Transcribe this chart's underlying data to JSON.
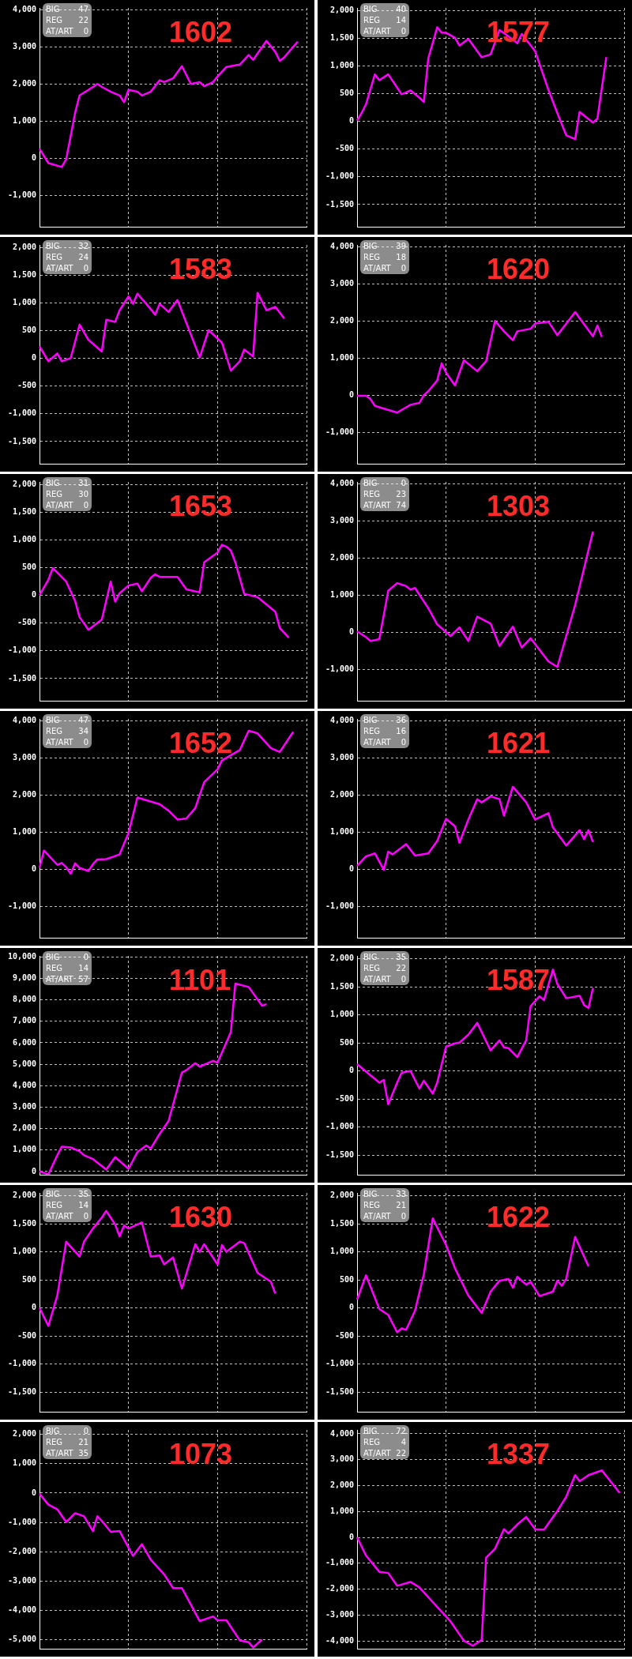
{
  "chart_data": [
    {
      "type": "line",
      "title": "1602",
      "annotations": [
        "BIG",
        "47",
        "REG",
        "22",
        "AT/ART",
        "0"
      ],
      "color": "#ff00ff",
      "grid": true,
      "tick_labels": "y",
      "marker": "none",
      "ylim": [
        -1850,
        4050
      ],
      "yticks": [
        {
          "value": 4000,
          "label": "4,000"
        },
        {
          "value": 3000,
          "label": "3,000"
        },
        {
          "value": 2000,
          "label": "2,000"
        },
        {
          "value": 1000,
          "label": "1,000"
        },
        0,
        {
          "value": -1000,
          "label": "-1,000"
        }
      ],
      "categories": [
        null,
        null,
        null,
        null,
        null,
        null,
        null,
        null,
        null,
        null,
        null,
        null,
        null,
        null,
        null,
        null,
        null,
        null,
        null,
        null,
        null,
        null,
        null,
        null,
        null,
        null,
        null,
        null,
        null,
        null,
        null,
        null,
        null,
        null,
        null,
        null,
        null,
        null,
        null,
        null,
        null,
        null,
        null,
        null,
        null,
        null,
        null,
        null,
        null,
        null,
        null,
        null,
        null,
        null,
        null,
        null,
        null,
        null,
        null,
        null,
        null
      ],
      "values": [
        250,
        null,
        -135,
        null,
        null,
        -240,
        -30,
        590,
        1220,
        1690,
        null,
        1840,
        null,
        2000,
        1920,
        null,
        1790,
        null,
        1690,
        1510,
        1840,
        null,
        1790,
        1690,
        null,
        1790,
        null,
        2100,
        2050,
        null,
        2150,
        null,
        2480,
        null,
        2000,
        null,
        2050,
        1940,
        null,
        2050,
        2200,
        null,
        2460,
        null,
        null,
        2520,
        null,
        2780,
        2650,
        null,
        null,
        3160,
        null,
        2860,
        2620,
        2720,
        null,
        null,
        3140,
        null,
        null
      ]
    },
    {
      "type": "line",
      "title": "1577",
      "annotations": [
        "BIG",
        "40",
        "REG",
        "14",
        "AT/ART",
        "0"
      ],
      "color": "#ff00ff",
      "grid": true,
      "tick_labels": "y",
      "marker": "none",
      "ylim": [
        -1900,
        2050
      ],
      "yticks": [
        {
          "value": 2000,
          "label": "2,000"
        },
        {
          "value": 1500,
          "label": "1,500"
        },
        {
          "value": 1000,
          "label": "1,000"
        },
        500,
        0,
        -500,
        {
          "value": -1000,
          "label": "-1,000"
        },
        {
          "value": -1500,
          "label": "-1,500"
        }
      ],
      "categories": [
        null,
        null,
        null,
        null,
        null,
        null,
        null,
        null,
        null,
        null,
        null,
        null,
        null,
        null,
        null,
        null,
        null,
        null,
        null,
        null,
        null,
        null,
        null,
        null,
        null,
        null,
        null,
        null,
        null,
        null,
        null,
        null,
        null,
        null,
        null,
        null,
        null,
        null,
        null,
        null,
        null,
        null,
        null,
        null,
        null,
        null,
        null,
        null,
        null,
        null,
        null,
        null,
        null,
        null,
        null,
        null,
        null,
        null,
        null,
        null,
        null
      ],
      "values": [
        15,
        150,
        310,
        null,
        850,
        745,
        null,
        850,
        null,
        null,
        490,
        null,
        560,
        null,
        430,
        350,
        1140,
        null,
        1700,
        1600,
        1600,
        null,
        1510,
        1370,
        null,
        1490,
        null,
        null,
        1160,
        null,
        1210,
        null,
        1650,
        null,
        null,
        1480,
        1410,
        1580,
        null,
        null,
        1270,
        null,
        null,
        570,
        null,
        150,
        null,
        -250,
        null,
        -320,
        170,
        null,
        null,
        -20,
        50,
        null,
        1160,
        null,
        null,
        null,
        null
      ]
    },
    {
      "type": "line",
      "title": "1583",
      "annotations": [
        "BIG",
        "32",
        "REG",
        "24",
        "AT/ART",
        "0"
      ],
      "color": "#ff00ff",
      "grid": true,
      "tick_labels": "y",
      "marker": "none",
      "ylim": [
        -1900,
        2050
      ],
      "yticks": [
        {
          "value": 2000,
          "label": "2,000"
        },
        {
          "value": 1500,
          "label": "1,500"
        },
        {
          "value": 1000,
          "label": "1,000"
        },
        500,
        0,
        -500,
        {
          "value": -1000,
          "label": "-1,000"
        },
        {
          "value": -1500,
          "label": "-1,500"
        }
      ],
      "categories": [
        null,
        null,
        null,
        null,
        null,
        null,
        null,
        null,
        null,
        null,
        null,
        null,
        null,
        null,
        null,
        null,
        null,
        null,
        null,
        null,
        null,
        null,
        null,
        null,
        null,
        null,
        null,
        null,
        null,
        null,
        null,
        null,
        null,
        null,
        null,
        null,
        null,
        null,
        null,
        null,
        null,
        null,
        null,
        null,
        null,
        null,
        null,
        null,
        null,
        null,
        null,
        null,
        null,
        null,
        null,
        null,
        null,
        null,
        null,
        null,
        null
      ],
      "values": [
        215,
        null,
        -50,
        null,
        90,
        -50,
        null,
        5,
        300,
        610,
        null,
        335,
        null,
        null,
        125,
        700,
        null,
        660,
        870,
        null,
        1120,
        985,
        1170,
        null,
        null,
        890,
        790,
        985,
        null,
        840,
        null,
        1055,
        null,
        null,
        null,
        null,
        20,
        null,
        510,
        null,
        null,
        285,
        null,
        -220,
        null,
        -50,
        160,
        null,
        35,
        1185,
        null,
        870,
        null,
        930,
        null,
        720,
        null,
        null,
        null,
        null,
        null
      ]
    },
    {
      "type": "line",
      "title": "1620",
      "annotations": [
        "BIG",
        "39",
        "REG",
        "18",
        "AT/ART",
        "0"
      ],
      "color": "#ff00ff",
      "grid": true,
      "tick_labels": "y",
      "marker": "none",
      "ylim": [
        -1850,
        4050
      ],
      "yticks": [
        {
          "value": 4000,
          "label": "4,000"
        },
        {
          "value": 3000,
          "label": "3,000"
        },
        {
          "value": 2000,
          "label": "2,000"
        },
        {
          "value": 1000,
          "label": "1,000"
        },
        0,
        {
          "value": -1000,
          "label": "-1,000"
        }
      ],
      "categories": [
        null,
        null,
        null,
        null,
        null,
        null,
        null,
        null,
        null,
        null,
        null,
        null,
        null,
        null,
        null,
        null,
        null,
        null,
        null,
        null,
        null,
        null,
        null,
        null,
        null,
        null,
        null,
        null,
        null,
        null,
        null,
        null,
        null,
        null,
        null,
        null,
        null,
        null,
        null,
        null,
        null,
        null,
        null,
        null,
        null,
        null,
        null,
        null,
        null,
        null,
        null,
        null,
        null,
        null,
        null,
        null,
        null,
        null,
        null,
        null,
        null
      ],
      "values": [
        -20,
        null,
        -20,
        -105,
        -290,
        null,
        -365,
        null,
        null,
        -470,
        null,
        null,
        -260,
        null,
        -210,
        0,
        105,
        null,
        395,
        855,
        605,
        null,
        260,
        null,
        940,
        null,
        null,
        645,
        null,
        915,
        null,
        2000,
        null,
        1720,
        null,
        1480,
        1720,
        null,
        null,
        1790,
        1930,
        null,
        null,
        1980,
        null,
        1615,
        null,
        null,
        null,
        2240,
        null,
        null,
        null,
        1585,
        1875,
        1565,
        null,
        null,
        null,
        null,
        null
      ]
    },
    {
      "type": "line",
      "title": "1653",
      "annotations": [
        "BIG",
        "31",
        "REG",
        "30",
        "AT/ART",
        "0"
      ],
      "color": "#ff00ff",
      "grid": true,
      "tick_labels": "y",
      "marker": "none",
      "ylim": [
        -1900,
        2050
      ],
      "yticks": [
        {
          "value": 2000,
          "label": "2,000"
        },
        {
          "value": 1500,
          "label": "1,500"
        },
        {
          "value": 1000,
          "label": "1,000"
        },
        500,
        0,
        -500,
        {
          "value": -1000,
          "label": "-1,000"
        },
        {
          "value": -1500,
          "label": "-1,500"
        }
      ],
      "categories": [
        null,
        null,
        null,
        null,
        null,
        null,
        null,
        null,
        null,
        null,
        null,
        null,
        null,
        null,
        null,
        null,
        null,
        null,
        null,
        null,
        null,
        null,
        null,
        null,
        null,
        null,
        null,
        null,
        null,
        null,
        null,
        null,
        null,
        null,
        null,
        null,
        null,
        null,
        null,
        null,
        null,
        null,
        null,
        null,
        null,
        null,
        null,
        null,
        null,
        null,
        null,
        null,
        null,
        null,
        null,
        null,
        null,
        null,
        null,
        null,
        null
      ],
      "values": [
        5,
        null,
        285,
        495,
        null,
        null,
        250,
        null,
        -100,
        -390,
        null,
        -620,
        null,
        null,
        -435,
        null,
        250,
        -110,
        40,
        null,
        180,
        null,
        215,
        75,
        null,
        320,
        380,
        335,
        null,
        335,
        null,
        335,
        null,
        110,
        null,
        null,
        55,
        600,
        null,
        null,
        775,
        915,
        880,
        810,
        600,
        null,
        30,
        null,
        null,
        -30,
        null,
        null,
        null,
        -295,
        -590,
        null,
        -760,
        null,
        null,
        null,
        null
      ]
    },
    {
      "type": "line",
      "title": "1303",
      "annotations": [
        "BIG",
        "0",
        "REG",
        "23",
        "AT/ART",
        "74"
      ],
      "color": "#ff00ff",
      "grid": true,
      "tick_labels": "y",
      "marker": "none",
      "ylim": [
        -1850,
        4050
      ],
      "yticks": [
        {
          "value": 4000,
          "label": "4,000"
        },
        {
          "value": 3000,
          "label": "3,000"
        },
        {
          "value": 2000,
          "label": "2,000"
        },
        {
          "value": 1000,
          "label": "1,000"
        },
        0,
        {
          "value": -1000,
          "label": "-1,000"
        }
      ],
      "categories": [
        null,
        null,
        null,
        null,
        null,
        null,
        null,
        null,
        null,
        null,
        null,
        null,
        null,
        null,
        null,
        null,
        null,
        null,
        null,
        null,
        null,
        null,
        null,
        null,
        null,
        null,
        null,
        null,
        null,
        null,
        null,
        null,
        null,
        null,
        null,
        null,
        null,
        null,
        null,
        null,
        null,
        null,
        null,
        null,
        null,
        null,
        null,
        null,
        null,
        null,
        null,
        null,
        null,
        null,
        null,
        null,
        null,
        null,
        null,
        null,
        null
      ],
      "values": [
        20,
        null,
        -135,
        -240,
        null,
        -190,
        null,
        1115,
        null,
        1320,
        null,
        1240,
        1145,
        1190,
        null,
        null,
        645,
        null,
        210,
        null,
        null,
        -105,
        null,
        125,
        null,
        -240,
        null,
        415,
        null,
        null,
        230,
        null,
        -375,
        null,
        null,
        145,
        null,
        -415,
        null,
        -165,
        null,
        null,
        null,
        -790,
        null,
        -940,
        null,
        null,
        null,
        730,
        null,
        null,
        null,
        2710,
        null,
        null,
        null,
        null,
        null,
        null,
        null
      ]
    },
    {
      "type": "line",
      "title": "1652",
      "annotations": [
        "BIG",
        "47",
        "REG",
        "34",
        "AT/ART",
        "0"
      ],
      "color": "#ff00ff",
      "grid": true,
      "tick_labels": "y",
      "marker": "none",
      "ylim": [
        -1850,
        4050
      ],
      "yticks": [
        {
          "value": 4000,
          "label": "4,000"
        },
        {
          "value": 3000,
          "label": "3,000"
        },
        {
          "value": 2000,
          "label": "2,000"
        },
        {
          "value": 1000,
          "label": "1,000"
        },
        0,
        {
          "value": -1000,
          "label": "-1,000"
        }
      ],
      "categories": [
        null,
        null,
        null,
        null,
        null,
        null,
        null,
        null,
        null,
        null,
        null,
        null,
        null,
        null,
        null,
        null,
        null,
        null,
        null,
        null,
        null,
        null,
        null,
        null,
        null,
        null,
        null,
        null,
        null,
        null,
        null,
        null,
        null,
        null,
        null,
        null,
        null,
        null,
        null,
        null,
        null,
        null,
        null,
        null,
        null,
        null,
        null,
        null,
        null,
        null,
        null,
        null,
        null,
        null,
        null,
        null,
        null,
        null,
        null,
        null,
        null
      ],
      "values": [
        30,
        500,
        null,
        null,
        115,
        165,
        50,
        -125,
        155,
        30,
        null,
        -50,
        135,
        260,
        null,
        270,
        null,
        null,
        395,
        null,
        970,
        null,
        1930,
        null,
        1855,
        null,
        null,
        1750,
        null,
        1575,
        null,
        1335,
        null,
        1365,
        null,
        1645,
        null,
        2345,
        null,
        null,
        2690,
        2930,
        null,
        null,
        null,
        3210,
        null,
        3730,
        null,
        3660,
        null,
        null,
        3260,
        null,
        3160,
        null,
        null,
        3700,
        null,
        null,
        null
      ]
    },
    {
      "type": "line",
      "title": "1621",
      "annotations": [
        "BIG",
        "36",
        "REG",
        "16",
        "AT/ART",
        "0"
      ],
      "color": "#ff00ff",
      "grid": true,
      "tick_labels": "y",
      "marker": "none",
      "ylim": [
        -1850,
        4050
      ],
      "yticks": [
        {
          "value": 4000,
          "label": "4,000"
        },
        {
          "value": 3000,
          "label": "3,000"
        },
        {
          "value": 2000,
          "label": "2,000"
        },
        {
          "value": 1000,
          "label": "1,000"
        },
        0,
        {
          "value": -1000,
          "label": "-1,000"
        }
      ],
      "categories": [
        null,
        null,
        null,
        null,
        null,
        null,
        null,
        null,
        null,
        null,
        null,
        null,
        null,
        null,
        null,
        null,
        null,
        null,
        null,
        null,
        null,
        null,
        null,
        null,
        null,
        null,
        null,
        null,
        null,
        null,
        null,
        null,
        null,
        null,
        null,
        null,
        null,
        null,
        null,
        null,
        null,
        null,
        null,
        null,
        null,
        null,
        null,
        null,
        null,
        null,
        null,
        null,
        null,
        null,
        null,
        null,
        null,
        null,
        null,
        null,
        null
      ],
      "values": [
        85,
        null,
        345,
        null,
        425,
        null,
        -20,
        470,
        395,
        null,
        null,
        675,
        null,
        365,
        null,
        null,
        425,
        null,
        760,
        null,
        1355,
        null,
        1155,
        710,
        null,
        1335,
        null,
        1885,
        1800,
        null,
        1960,
        null,
        1885,
        1440,
        null,
        2220,
        null,
        null,
        1800,
        null,
        1335,
        null,
        null,
        1510,
        1125,
        null,
        null,
        635,
        null,
        null,
        1050,
        810,
        1050,
        730,
        null,
        null,
        null,
        null,
        null,
        null,
        null
      ]
    },
    {
      "type": "line",
      "title": "1101",
      "annotations": [
        "BIG",
        "0",
        "REG",
        "14",
        "AT/ART",
        "57"
      ],
      "color": "#ff00ff",
      "grid": true,
      "tick_labels": "y",
      "marker": "none",
      "ylim": [
        -150,
        10050
      ],
      "yticks": [
        {
          "value": 10000,
          "label": "10,000"
        },
        {
          "value": 9000,
          "label": "9,000"
        },
        {
          "value": 8000,
          "label": "8,000"
        },
        {
          "value": 7000,
          "label": "7,000"
        },
        {
          "value": 6000,
          "label": "6,000"
        },
        {
          "value": 5000,
          "label": "5,000"
        },
        {
          "value": 4000,
          "label": "4,000"
        },
        {
          "value": 3000,
          "label": "3,000"
        },
        {
          "value": 2000,
          "label": "2,000"
        },
        {
          "value": 1000,
          "label": "1,000"
        },
        0
      ],
      "categories": [
        null,
        null,
        null,
        null,
        null,
        null,
        null,
        null,
        null,
        null,
        null,
        null,
        null,
        null,
        null,
        null,
        null,
        null,
        null,
        null,
        null,
        null,
        null,
        null,
        null,
        null,
        null,
        null,
        null,
        null,
        null,
        null,
        null,
        null,
        null,
        null,
        null,
        null,
        null,
        null,
        null,
        null,
        null,
        null,
        null,
        null,
        null,
        null,
        null,
        null,
        null,
        null,
        null,
        null,
        null,
        null,
        null,
        null,
        null,
        null,
        null
      ],
      "values": [
        0,
        null,
        -130,
        null,
        760,
        1160,
        null,
        1120,
        null,
        940,
        760,
        null,
        580,
        null,
        null,
        90,
        null,
        670,
        null,
        null,
        125,
        null,
        905,
        null,
        1210,
        1070,
        null,
        1755,
        null,
        2355,
        null,
        null,
        4615,
        4725,
        null,
        5050,
        4885,
        null,
        null,
        5160,
        5070,
        null,
        null,
        6500,
        8760,
        null,
        null,
        8600,
        null,
        null,
        7730,
        7800,
        null,
        null,
        null,
        null,
        null,
        null,
        null,
        null,
        null
      ]
    },
    {
      "type": "line",
      "title": "1587",
      "annotations": [
        "BIG",
        "35",
        "REG",
        "22",
        "AT/ART",
        "0"
      ],
      "color": "#ff00ff",
      "grid": true,
      "tick_labels": "y",
      "marker": "none",
      "ylim": [
        -1850,
        2050
      ],
      "yticks": [
        {
          "value": 2000,
          "label": "2,000"
        },
        {
          "value": 1500,
          "label": "1,500"
        },
        {
          "value": 1000,
          "label": "1,000"
        },
        500,
        0,
        -500,
        {
          "value": -1000,
          "label": "-1,000"
        },
        {
          "value": -1500,
          "label": "-1,500"
        }
      ],
      "categories": [
        null,
        null,
        null,
        null,
        null,
        null,
        null,
        null,
        null,
        null,
        null,
        null,
        null,
        null,
        null,
        null,
        null,
        null,
        null,
        null,
        null,
        null,
        null,
        null,
        null,
        null,
        null,
        null,
        null,
        null,
        null,
        null,
        null,
        null,
        null,
        null,
        null,
        null,
        null,
        null,
        null,
        null,
        null,
        null,
        null,
        null,
        null,
        null,
        null,
        null,
        null,
        null,
        null,
        null,
        null,
        null,
        null,
        null,
        null,
        null,
        null
      ],
      "values": [
        120,
        null,
        null,
        null,
        null,
        -210,
        -160,
        -595,
        null,
        -210,
        -35,
        null,
        0,
        null,
        -315,
        -175,
        null,
        -405,
        -210,
        null,
        435,
        null,
        490,
        505,
        575,
        645,
        null,
        855,
        null,
        null,
        365,
        null,
        545,
        420,
        405,
        null,
        245,
        null,
        545,
        1155,
        null,
        1330,
        1260,
        null,
        1805,
        1550,
        null,
        1295,
        null,
        null,
        1340,
        1175,
        1120,
        1480,
        null,
        null,
        null,
        null,
        null,
        null,
        null
      ]
    },
    {
      "type": "line",
      "title": "1630",
      "annotations": [
        "BIG",
        "35",
        "REG",
        "14",
        "AT/ART",
        "0"
      ],
      "color": "#ff00ff",
      "grid": true,
      "tick_labels": "y",
      "marker": "none",
      "ylim": [
        -1850,
        2050
      ],
      "yticks": [
        {
          "value": 2000,
          "label": "2,000"
        },
        {
          "value": 1500,
          "label": "1,500"
        },
        {
          "value": 1000,
          "label": "1,000"
        },
        500,
        0,
        -500,
        {
          "value": -1000,
          "label": "-1,000"
        },
        {
          "value": -1500,
          "label": "-1,500"
        }
      ],
      "categories": [
        null,
        null,
        null,
        null,
        null,
        null,
        null,
        null,
        null,
        null,
        null,
        null,
        null,
        null,
        null,
        null,
        null,
        null,
        null,
        null,
        null,
        null,
        null,
        null,
        null,
        null,
        null,
        null,
        null,
        null,
        null,
        null,
        null,
        null,
        null,
        null,
        null,
        null,
        null,
        null,
        null,
        null,
        null,
        null,
        null,
        null,
        null,
        null,
        null,
        null,
        null,
        null,
        null,
        null,
        null,
        null,
        null,
        null,
        null,
        null,
        null
      ],
      "values": [
        0,
        null,
        -320,
        null,
        220,
        null,
        1180,
        null,
        null,
        915,
        1180,
        null,
        1415,
        null,
        1610,
        1730,
        null,
        1485,
        1275,
        1470,
        1415,
        null,
        null,
        1525,
        null,
        915,
        null,
        935,
        775,
        null,
        900,
        null,
        345,
        null,
        null,
        1135,
        1000,
        1135,
        null,
        null,
        775,
        1120,
        1000,
        null,
        null,
        1180,
        1155,
        null,
        null,
        625,
        null,
        null,
        465,
        255,
        null,
        null,
        null,
        null,
        null,
        null,
        null
      ]
    },
    {
      "type": "line",
      "title": "1622",
      "annotations": [
        "BIG",
        "33",
        "REG",
        "21",
        "AT/ART",
        "0"
      ],
      "color": "#ff00ff",
      "grid": true,
      "tick_labels": "y",
      "marker": "none",
      "ylim": [
        -1850,
        2050
      ],
      "yticks": [
        {
          "value": 2000,
          "label": "2,000"
        },
        {
          "value": 1500,
          "label": "1,500"
        },
        {
          "value": 1000,
          "label": "1,000"
        },
        500,
        0,
        -500,
        {
          "value": -1000,
          "label": "-1,000"
        },
        {
          "value": -1500,
          "label": "-1,500"
        }
      ],
      "categories": [
        null,
        null,
        null,
        null,
        null,
        null,
        null,
        null,
        null,
        null,
        null,
        null,
        null,
        null,
        null,
        null,
        null,
        null,
        null,
        null,
        null,
        null,
        null,
        null,
        null,
        null,
        null,
        null,
        null,
        null,
        null,
        null,
        null,
        null,
        null,
        null,
        null,
        null,
        null,
        null,
        null,
        null,
        null,
        null,
        null,
        null,
        null,
        null,
        null,
        null,
        null,
        null,
        null,
        null,
        null,
        null,
        null,
        null,
        null,
        null,
        null
      ],
      "values": [
        150,
        null,
        580,
        null,
        null,
        -20,
        null,
        -125,
        null,
        -435,
        -365,
        -390,
        null,
        -55,
        null,
        600,
        null,
        1595,
        null,
        null,
        1120,
        null,
        705,
        null,
        null,
        220,
        null,
        null,
        -90,
        null,
        290,
        null,
        485,
        null,
        515,
        360,
        555,
        null,
        415,
        465,
        null,
        210,
        null,
        null,
        290,
        485,
        395,
        520,
        null,
        1265,
        null,
        null,
        740,
        null,
        null,
        null,
        null,
        null,
        null,
        null,
        null
      ]
    },
    {
      "type": "line",
      "title": "1073",
      "annotations": [
        "BIG",
        "0",
        "REG",
        "21",
        "AT/ART",
        "35"
      ],
      "color": "#ff00ff",
      "grid": true,
      "tick_labels": "y",
      "marker": "none",
      "ylim": [
        -5300,
        2150
      ],
      "yticks": [
        {
          "value": 2000,
          "label": "2,000"
        },
        {
          "value": 1000,
          "label": "1,000"
        },
        0,
        {
          "value": -1000,
          "label": "-1,000"
        },
        {
          "value": -2000,
          "label": "-2,000"
        },
        {
          "value": -3000,
          "label": "-3,000"
        },
        {
          "value": -4000,
          "label": "-4,000"
        },
        {
          "value": -5000,
          "label": "-5,000"
        }
      ],
      "categories": [
        null,
        null,
        null,
        null,
        null,
        null,
        null,
        null,
        null,
        null,
        null,
        null,
        null,
        null,
        null,
        null,
        null,
        null,
        null,
        null,
        null,
        null,
        null,
        null,
        null,
        null,
        null,
        null,
        null,
        null,
        null,
        null,
        null,
        null,
        null,
        null,
        null,
        null,
        null,
        null,
        null,
        null,
        null,
        null,
        null,
        null,
        null,
        null,
        null,
        null,
        null,
        null,
        null,
        null,
        null,
        null,
        null,
        null,
        null,
        null,
        null
      ],
      "values": [
        -25,
        null,
        -395,
        null,
        -555,
        null,
        -990,
        null,
        -685,
        null,
        -790,
        null,
        -1295,
        -790,
        -950,
        null,
        -1320,
        null,
        -1295,
        null,
        null,
        -2140,
        null,
        -1740,
        null,
        -2270,
        null,
        null,
        -2770,
        null,
        -3235,
        null,
        -3235,
        null,
        null,
        null,
        -4360,
        null,
        null,
        -4200,
        -4330,
        null,
        -4330,
        null,
        null,
        -5015,
        null,
        -5080,
        -5255,
        null,
        -4990,
        null,
        null,
        null,
        null,
        null,
        null,
        null,
        null,
        null,
        null
      ]
    },
    {
      "type": "line",
      "title": "1337",
      "annotations": [
        "BIG",
        "72",
        "REG",
        "4",
        "AT/ART",
        "22"
      ],
      "color": "#ff00ff",
      "grid": true,
      "tick_labels": "y",
      "marker": "none",
      "ylim": [
        -4300,
        4150
      ],
      "yticks": [
        {
          "value": 4000,
          "label": "4,000"
        },
        {
          "value": 3000,
          "label": "3,000"
        },
        {
          "value": 2000,
          "label": "2,000"
        },
        {
          "value": 1000,
          "label": "1,000"
        },
        0,
        {
          "value": -1000,
          "label": "-1,000"
        },
        {
          "value": -2000,
          "label": "-2,000"
        },
        {
          "value": -3000,
          "label": "-3,000"
        },
        {
          "value": -4000,
          "label": "-4,000"
        }
      ],
      "categories": [
        null,
        null,
        null,
        null,
        null,
        null,
        null,
        null,
        null,
        null,
        null,
        null,
        null,
        null,
        null,
        null,
        null,
        null,
        null,
        null,
        null,
        null,
        null,
        null,
        null,
        null,
        null,
        null,
        null,
        null,
        null,
        null,
        null,
        null,
        null,
        null,
        null,
        null,
        null,
        null,
        null,
        null,
        null,
        null,
        null,
        null,
        null,
        null,
        null,
        null,
        null,
        null,
        null,
        null,
        null,
        null,
        null,
        null,
        null,
        null,
        null
      ],
      "values": [
        0,
        null,
        -700,
        null,
        null,
        -1330,
        null,
        -1375,
        null,
        -1870,
        null,
        null,
        -1720,
        null,
        -1930,
        null,
        null,
        -2500,
        null,
        null,
        null,
        -3245,
        null,
        null,
        -3990,
        null,
        -4185,
        null,
        -3960,
        -780,
        null,
        -435,
        null,
        315,
        150,
        null,
        495,
        null,
        790,
        null,
        315,
        null,
        300,
        null,
        null,
        1015,
        null,
        1570,
        null,
        2405,
        2170,
        null,
        2405,
        null,
        null,
        2585,
        null,
        null,
        null,
        1720,
        null
      ]
    }
  ]
}
